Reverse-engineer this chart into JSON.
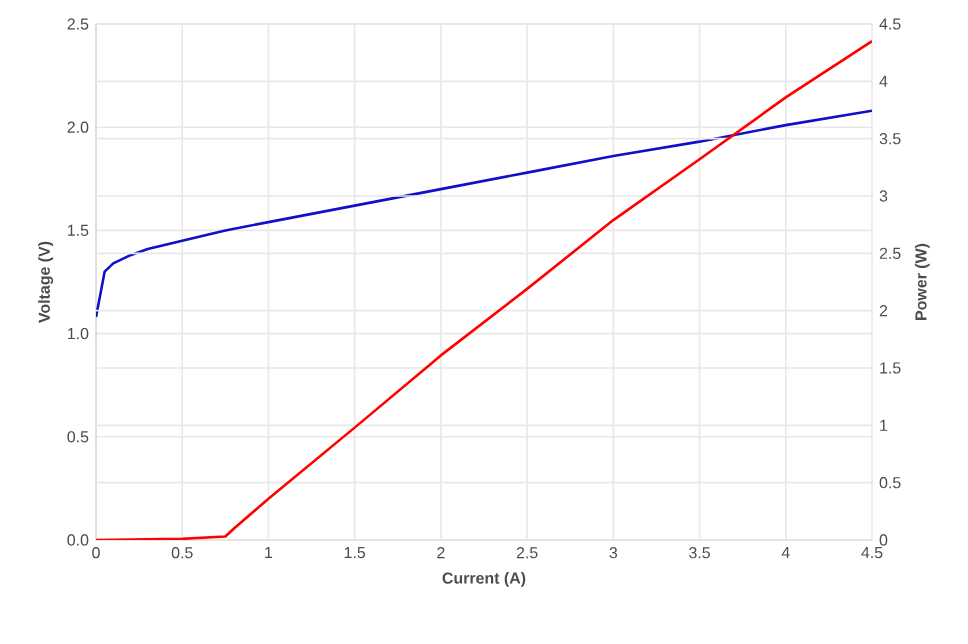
{
  "chart_data": {
    "type": "line",
    "xlabel": "Current (A)",
    "ylabel": "Voltage (V)",
    "y2label": "Power (W)",
    "xlim": [
      0,
      4.5
    ],
    "xticks": [
      0,
      0.5,
      1,
      1.5,
      2,
      2.5,
      3,
      3.5,
      4,
      4.5
    ],
    "ylim": [
      0,
      2.5
    ],
    "yticks": [
      {
        "value": 0,
        "label": "0.0"
      },
      {
        "value": 0.5,
        "label": "0.5"
      },
      {
        "value": 1,
        "label": "1.0"
      },
      {
        "value": 1.5,
        "label": "1.5"
      },
      {
        "value": 2,
        "label": "2.0"
      },
      {
        "value": 2.5,
        "label": "2.5"
      }
    ],
    "y2lim": [
      0,
      4.5
    ],
    "y2ticks": [
      0,
      0.5,
      1,
      1.5,
      2,
      2.5,
      3,
      3.5,
      4,
      4.5
    ],
    "grid": true,
    "marker": "none",
    "line_style": "solid",
    "series": [
      {
        "color": "#1010c8",
        "x": [
          0,
          0.05,
          0.1,
          0.2,
          0.3,
          0.5,
          0.75,
          1,
          1.5,
          2,
          2.5,
          3,
          3.5,
          4,
          4.5
        ],
        "values": [
          1.08,
          1.3,
          1.34,
          1.38,
          1.41,
          1.45,
          1.5,
          1.54,
          1.62,
          1.7,
          1.78,
          1.86,
          1.93,
          2.01,
          2.08
        ]
      },
      {
        "color": "#ff0000",
        "axis": "y2",
        "x": [
          0,
          0.5,
          0.75,
          0.8,
          1,
          1.5,
          2,
          2.5,
          3,
          3.5,
          4,
          4.5
        ],
        "values": [
          0,
          0.01,
          0.03,
          0.1,
          0.36,
          0.98,
          1.61,
          2.19,
          2.79,
          3.32,
          3.86,
          4.35
        ]
      }
    ]
  }
}
